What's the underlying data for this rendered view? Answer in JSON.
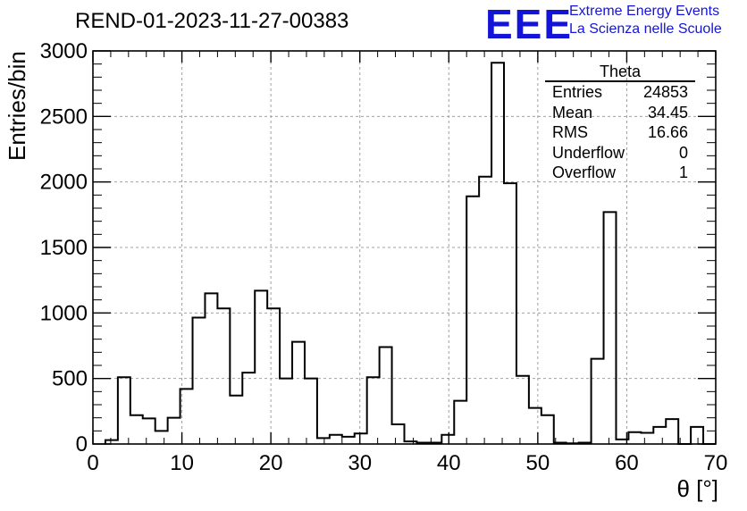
{
  "chart_data": {
    "type": "bar",
    "title": "REND-01-2023-11-27-00383",
    "xlabel": "θ [°]",
    "ylabel": "Entries/bin",
    "xlim": [
      0,
      70
    ],
    "ylim": [
      0,
      3000
    ],
    "xticks": [
      "0",
      "10",
      "20",
      "30",
      "40",
      "50",
      "60",
      "70"
    ],
    "yticks": [
      "0",
      "500",
      "1000",
      "1500",
      "2000",
      "2500",
      "3000"
    ],
    "grid": true,
    "bin_width": 1.4,
    "bin_low_edges": [
      1.4,
      2.8,
      4.2,
      5.6,
      7.0,
      8.4,
      9.8,
      11.2,
      12.6,
      14.0,
      15.4,
      16.8,
      18.2,
      19.6,
      21.0,
      22.4,
      23.8,
      25.2,
      26.6,
      28.0,
      29.4,
      30.8,
      32.2,
      33.6,
      35.0,
      36.4,
      37.8,
      39.2,
      40.6,
      42.0,
      43.4,
      44.8,
      46.2,
      47.6,
      49.0,
      50.4,
      51.8,
      53.2,
      54.6,
      56.0,
      57.4,
      58.8,
      60.2,
      61.6,
      63.0,
      64.4,
      65.8,
      67.2,
      68.6
    ],
    "values": [
      30,
      510,
      220,
      195,
      100,
      200,
      420,
      965,
      1150,
      1035,
      370,
      545,
      1170,
      1035,
      500,
      780,
      500,
      45,
      70,
      55,
      80,
      510,
      740,
      150,
      20,
      10,
      10,
      70,
      330,
      1890,
      2040,
      2910,
      1990,
      520,
      275,
      220,
      10,
      5,
      10,
      650,
      1770,
      35,
      90,
      85,
      130,
      190,
      0,
      130,
      0
    ]
  },
  "logo": {
    "text": "EEE",
    "line1": "Extreme Energy Events",
    "line2": "La Scienza nelle Scuole",
    "color": "#1414d8"
  },
  "stats": {
    "name": "Theta",
    "rows": [
      {
        "label": "Entries",
        "value": "24853"
      },
      {
        "label": "Mean",
        "value": "34.45"
      },
      {
        "label": "RMS",
        "value": "16.66"
      },
      {
        "label": "Underflow",
        "value": "0"
      },
      {
        "label": "Overflow",
        "value": "1"
      }
    ]
  }
}
